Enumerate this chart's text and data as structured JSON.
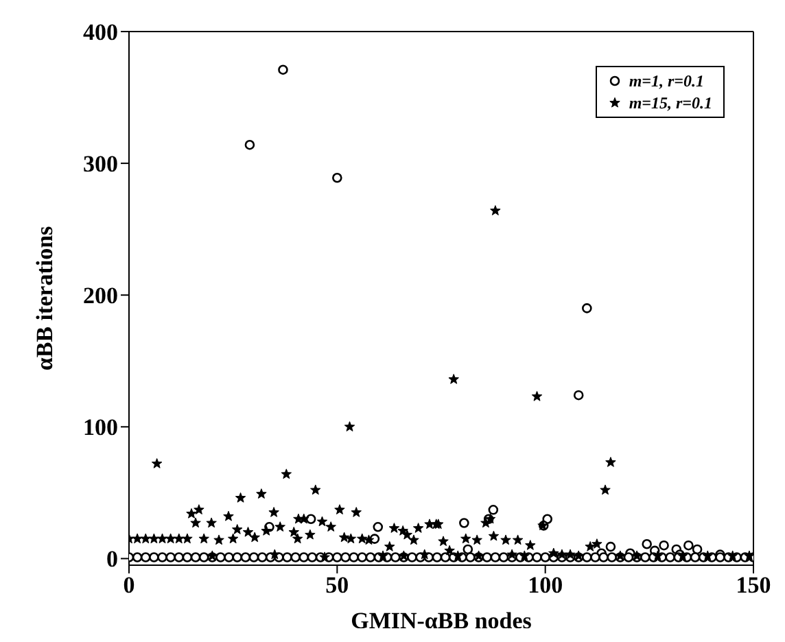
{
  "chart_data": {
    "type": "scatter",
    "xlabel": "GMIN-αBB nodes",
    "ylabel": "αBB iterations",
    "xlim": [
      0,
      150
    ],
    "xticks": [
      0,
      50,
      100,
      150
    ],
    "ylim": [
      -5,
      400
    ],
    "yticks": [
      0,
      100,
      200,
      300,
      400
    ],
    "grid": false,
    "legend": "top right",
    "series": [
      {
        "name": "m=1, r=0.1",
        "color": "#000000",
        "marker": "circle",
        "x": [
          37,
          29,
          50,
          110,
          108,
          33.7,
          43.7,
          59.8,
          59,
          80.5,
          81.4,
          87.5,
          86.4,
          100.5,
          99.6,
          115.7,
          113.5,
          120.4,
          124.4,
          126.3,
          128.5,
          131.5,
          134.4,
          136.5,
          132.3,
          142,
          0,
          2,
          4,
          6,
          8,
          10,
          12,
          14,
          16,
          18,
          20,
          22,
          24,
          26,
          28,
          30,
          32,
          34,
          36,
          38,
          40,
          42,
          44,
          46,
          48,
          50,
          52,
          54,
          56,
          58,
          60,
          62,
          64,
          66,
          68,
          70,
          72,
          74,
          76,
          78,
          80,
          82,
          84,
          86,
          88,
          90,
          92,
          94,
          96,
          98,
          100,
          102,
          104,
          106,
          108,
          110,
          112,
          114,
          116,
          118,
          120,
          122,
          124,
          126,
          128,
          130,
          132,
          134,
          136,
          138,
          140,
          142,
          144,
          146,
          148,
          150
        ],
        "values": [
          371,
          314,
          289,
          190,
          124,
          24,
          30,
          24,
          15,
          27,
          7,
          37,
          30,
          30,
          25,
          9,
          4,
          4,
          11,
          6,
          10,
          7,
          10,
          7,
          3,
          3,
          1,
          1,
          1,
          1,
          1,
          1,
          1,
          1,
          1,
          1,
          1,
          1,
          1,
          1,
          1,
          1,
          1,
          1,
          1,
          1,
          1,
          1,
          1,
          1,
          1,
          1,
          1,
          1,
          1,
          1,
          1,
          1,
          1,
          1,
          1,
          1,
          1,
          1,
          1,
          1,
          1,
          1,
          1,
          1,
          1,
          1,
          1,
          1,
          1,
          1,
          1,
          1,
          1,
          1,
          1,
          1,
          1,
          1,
          1,
          1,
          1,
          1,
          1,
          1,
          1,
          1,
          1,
          1,
          1,
          1,
          1,
          1,
          1,
          1,
          1,
          1
        ]
      },
      {
        "name": "m=15, r=0.1",
        "color": "#000000",
        "marker": "star",
        "x": [
          88,
          78,
          98,
          53,
          6.7,
          0,
          2,
          4,
          6,
          8,
          10,
          12,
          14,
          15,
          16.8,
          16,
          19.8,
          18,
          23.9,
          21.6,
          25,
          26.8,
          26,
          28.6,
          30.2,
          31.8,
          34.8,
          33,
          36.3,
          37.8,
          39.6,
          40.5,
          40.7,
          42,
          43.5,
          44.8,
          46.4,
          48.5,
          50.6,
          51.7,
          53.3,
          54.6,
          56,
          57.6,
          62.6,
          63.7,
          65.8,
          66.8,
          68.4,
          69.5,
          72.2,
          73.8,
          74.3,
          75.5,
          77,
          80.9,
          83.6,
          85.7,
          86.8,
          87.6,
          90.5,
          93.4,
          96.4,
          99.4,
          106,
          110.8,
          112.4,
          114.4,
          115.7,
          20,
          35,
          47,
          61,
          66,
          71,
          79,
          84,
          92,
          95,
          102,
          104,
          108,
          118,
          122,
          127,
          133,
          139,
          145,
          149
        ],
        "values": [
          264,
          136,
          123,
          100,
          72,
          15,
          15,
          15,
          15,
          15,
          15,
          15,
          15,
          34,
          37,
          27,
          27,
          15,
          32,
          14,
          15,
          46,
          22,
          20,
          16,
          49,
          35,
          21,
          24,
          64,
          20,
          15,
          30,
          30,
          18,
          52,
          28,
          24,
          37,
          16,
          15,
          35,
          15,
          14,
          9,
          23,
          21,
          18,
          14,
          23,
          26,
          26,
          26,
          13,
          6,
          15,
          14,
          27,
          30,
          17,
          14,
          14,
          10,
          25,
          3,
          9,
          11,
          52,
          73,
          2,
          3,
          1,
          2,
          2,
          3,
          2,
          2,
          3,
          2,
          4,
          3,
          2,
          2,
          2,
          2,
          2,
          2,
          2,
          2
        ]
      }
    ]
  }
}
